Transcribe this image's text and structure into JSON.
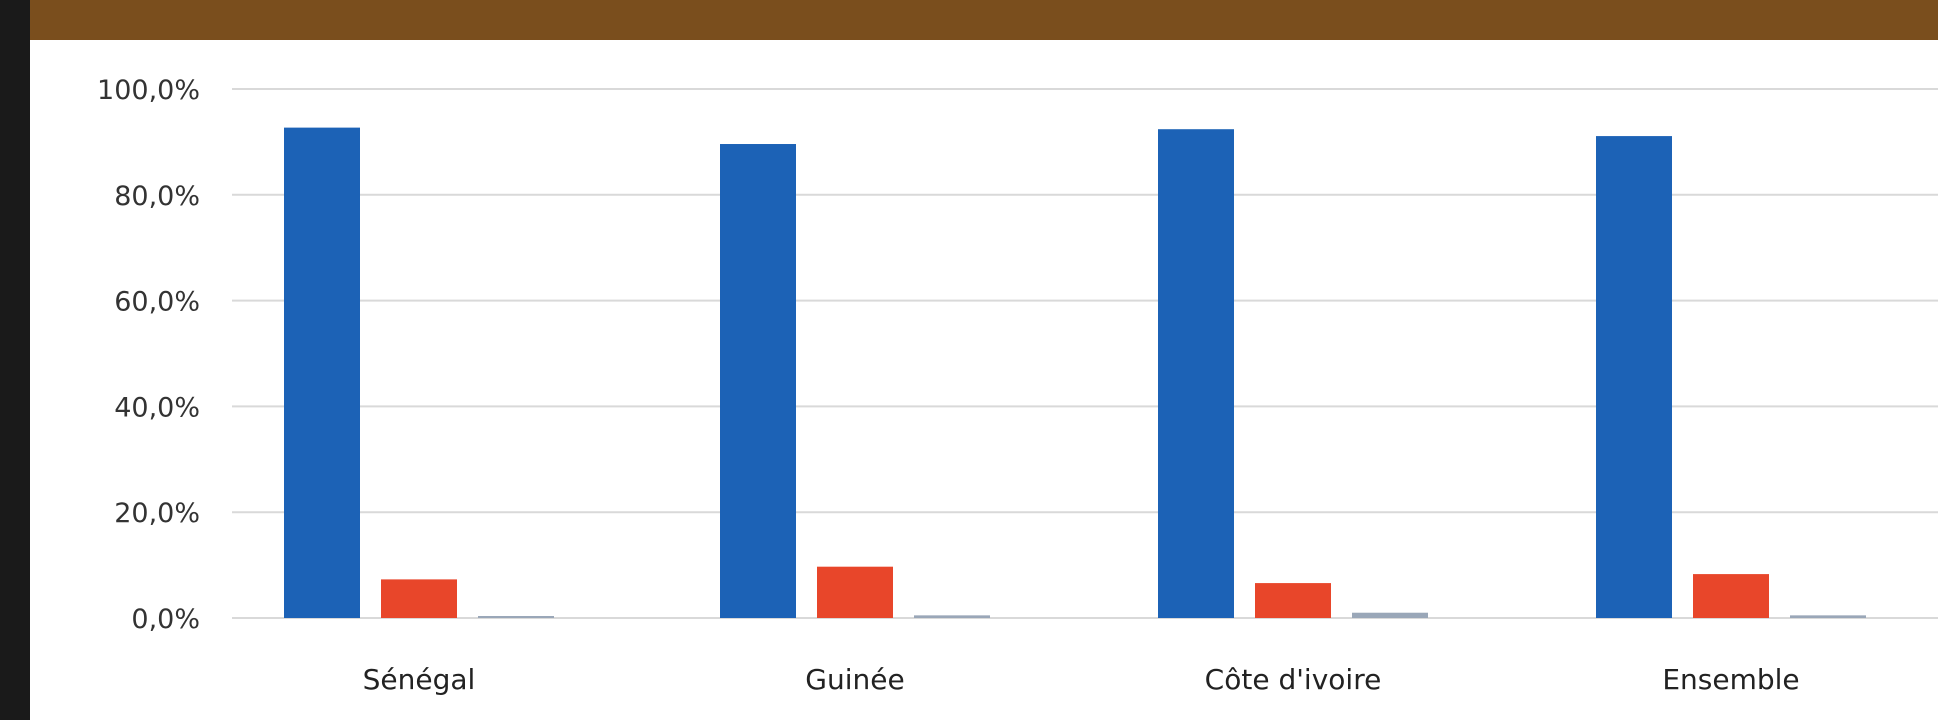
{
  "chart_data": {
    "type": "bar",
    "title": "",
    "xlabel": "",
    "ylabel": "",
    "categories": [
      "Sénégal",
      "Guinée",
      "Côte d'ivoire",
      "Ensemble"
    ],
    "series": [
      {
        "color": "#1c62b6",
        "values": [
          92.7,
          89.6,
          92.4,
          91.1
        ]
      },
      {
        "color": "#e8462a",
        "values": [
          7.3,
          9.7,
          6.6,
          8.3
        ]
      },
      {
        "color": "#9aa7b8",
        "values": [
          0.0,
          0.5,
          1.0,
          0.5
        ]
      }
    ],
    "ylim": [
      0,
      100
    ],
    "yticks": [
      "0,0%",
      "20,0%",
      "40,0%",
      "60,0%",
      "80,0%",
      "100,0%"
    ],
    "grid": true,
    "colors": {
      "header": "#7a4e1d",
      "border": "#1a1a1a",
      "grid": "#d9d9d9"
    }
  }
}
